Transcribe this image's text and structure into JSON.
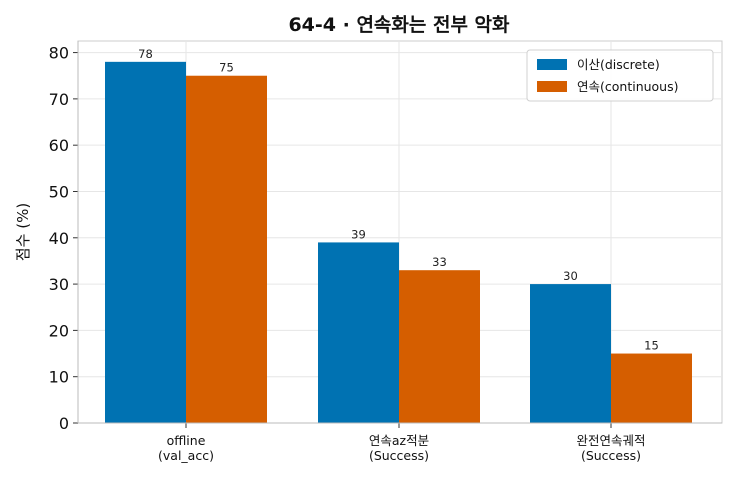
{
  "chart_data": {
    "type": "bar",
    "title": "64-4 · 연속화는 전부 악화",
    "ylabel": "점수 (%)",
    "xlabel": "",
    "ylim": [
      0,
      82.5
    ],
    "yticks": [
      0,
      10,
      20,
      30,
      40,
      50,
      60,
      70,
      80
    ],
    "grid": true,
    "legend_position": "top-right",
    "categories": [
      [
        "offline",
        "(val_acc)"
      ],
      [
        "연속az적분",
        "(Success)"
      ],
      [
        "완전연속궤적",
        "(Success)"
      ]
    ],
    "series": [
      {
        "name": "이산(discrete)",
        "color": "#0072B2",
        "values": [
          78,
          39,
          30
        ]
      },
      {
        "name": "연속(continuous)",
        "color": "#D55E00",
        "values": [
          75,
          33,
          15
        ]
      }
    ]
  }
}
